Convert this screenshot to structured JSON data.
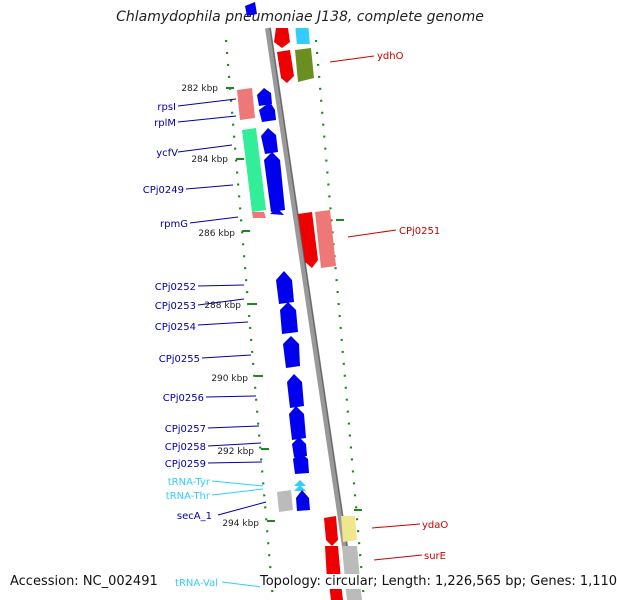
{
  "title": "Chlamydophila pneumoniae J138, complete genome",
  "footer": {
    "accession": "Accession: NC_002491",
    "topology": "Topology: circular; Length: 1,226,565 bp; Genes: 1,110"
  },
  "colors": {
    "forward": "#0000ee",
    "reverse": "#ee0000",
    "rna": "#33ccff",
    "label_left": "#0000aa",
    "label_right": "#cc0000",
    "tick": "#1a8a1a",
    "backbone": "#888888"
  },
  "ticks": [
    "282 kbp",
    "284 kbp",
    "286 kbp",
    "288 kbp",
    "290 kbp",
    "292 kbp",
    "294 kbp"
  ],
  "left_labels": [
    "rpsI",
    "rplM",
    "ycfV",
    "CPj0249",
    "rpmG",
    "CPj0252",
    "CPj0253",
    "CPj0254",
    "CPj0255",
    "CPj0256",
    "CPj0257",
    "CPj0258",
    "CPj0259",
    "tRNA-Tyr",
    "tRNA-Thr",
    "secA_1",
    "tRNA-Val"
  ],
  "right_labels": [
    "ydhO",
    "CPj0251",
    "ydaO",
    "surE"
  ]
}
